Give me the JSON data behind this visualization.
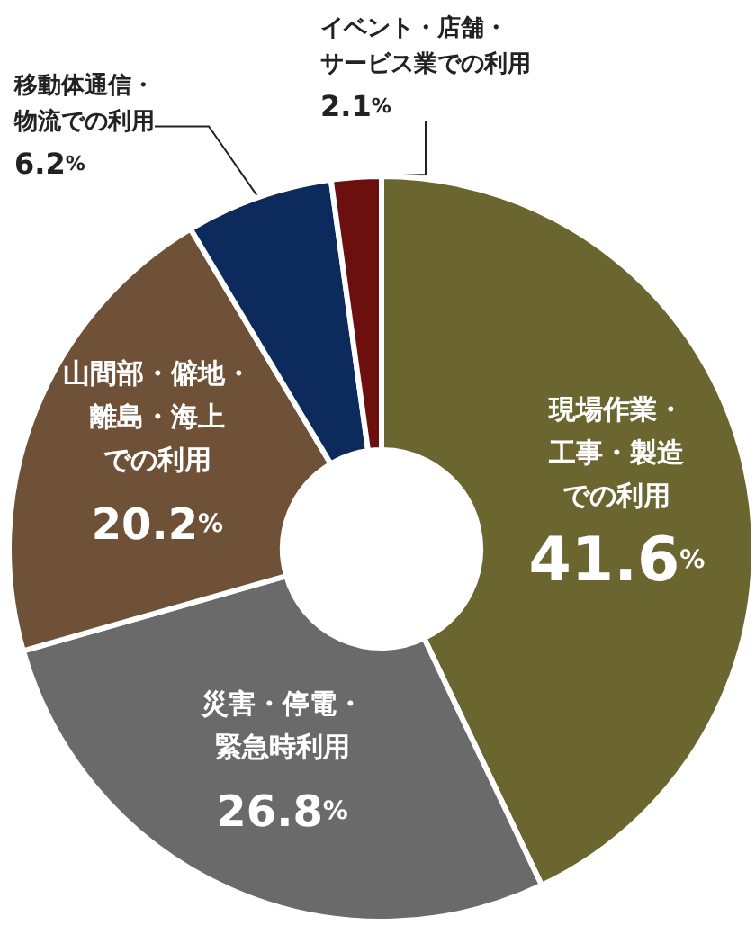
{
  "chart_data": {
    "type": "donut",
    "categories": [
      "現場作業・工事・製造での利用",
      "災害・停電・緊急時利用",
      "山間部・僻地・離島・海上での利用",
      "移動体通信・物流での利用",
      "イベント・店舗・サービス業での利用"
    ],
    "values": [
      41.6,
      26.8,
      20.2,
      6.2,
      2.1
    ],
    "value_labels": [
      "41.6%",
      "26.8%",
      "20.2%",
      "6.2%",
      "2.1%"
    ],
    "colors": [
      "#6b6530",
      "#6a6a6a",
      "#6e5137",
      "#0d2a5c",
      "#6b0f0f"
    ]
  }
}
